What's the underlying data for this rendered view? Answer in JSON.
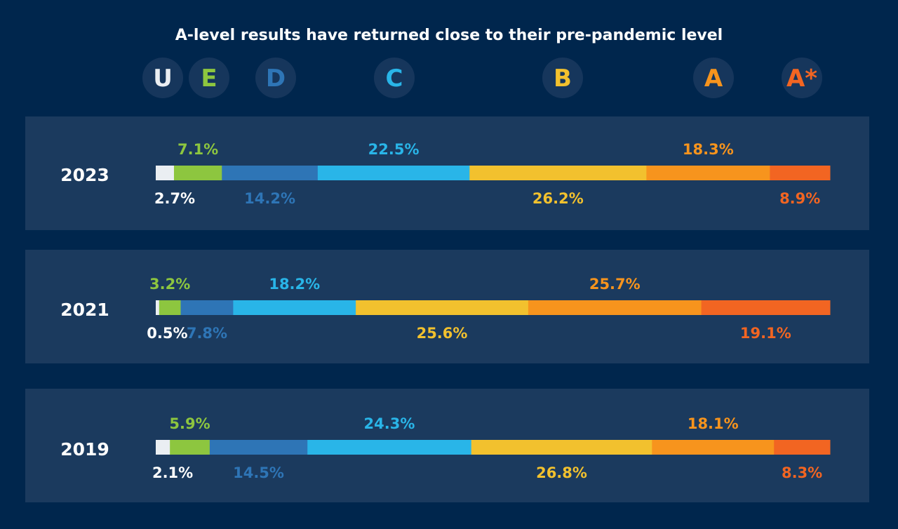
{
  "chart_data": {
    "type": "bar",
    "title": "A-level results have returned close to their pre-pandemic level",
    "grades": [
      "U",
      "E",
      "D",
      "C",
      "B",
      "A",
      "A*"
    ],
    "grade_colors": {
      "U": "#eaeef2",
      "E": "#8dc63f",
      "D": "#2e75b6",
      "C": "#29b5e8",
      "B": "#f2c12e",
      "A": "#f7941d",
      "A*": "#f26522"
    },
    "badge_bg": "#16365c",
    "panel_bg": "#1b3a5e",
    "background": "#00264d",
    "series": [
      {
        "name": "2023",
        "values": [
          2.7,
          7.1,
          14.2,
          22.5,
          26.2,
          18.3,
          8.9
        ]
      },
      {
        "name": "2021",
        "values": [
          0.5,
          3.2,
          7.8,
          18.2,
          25.6,
          25.7,
          19.1
        ]
      },
      {
        "name": "2019",
        "values": [
          2.1,
          5.9,
          14.5,
          24.3,
          26.8,
          18.1,
          8.3
        ]
      }
    ],
    "label_format": "{v}%",
    "label_placement": "alternating above/below, U below, E above"
  }
}
